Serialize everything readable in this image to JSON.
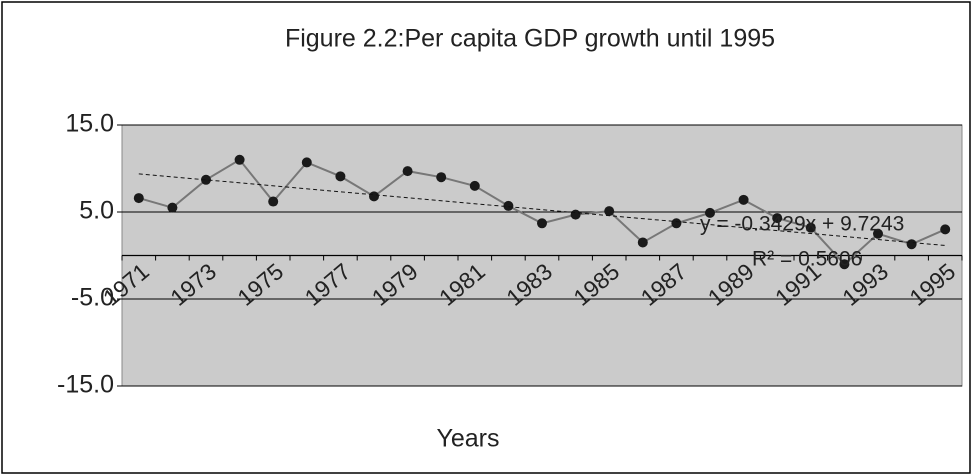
{
  "chart_data": {
    "type": "line",
    "title": "Figure 2.2:Per capita GDP growth until 1995",
    "x_label": "Years",
    "categories": [
      "1971",
      null,
      "1973",
      null,
      "1975",
      null,
      "1977",
      null,
      "1979",
      null,
      "1981",
      null,
      "1983",
      null,
      "1985",
      null,
      "1987",
      null,
      "1989",
      null,
      "1991",
      null,
      "1993",
      null,
      "1995"
    ],
    "series": [
      {
        "name": "Per capita GDP growth",
        "color": "#777777",
        "marker_color": "#1a1a1a",
        "values": [
          6.6,
          5.5,
          8.7,
          11.0,
          6.2,
          10.7,
          9.1,
          6.8,
          9.7,
          9.0,
          8.0,
          5.7,
          3.7,
          4.7,
          5.1,
          1.5,
          3.7,
          4.9,
          6.4,
          4.3,
          3.2,
          -1.0,
          2.5,
          1.3,
          3.0
        ]
      }
    ],
    "ylim": [
      -15,
      15
    ],
    "yticks": [
      {
        "value": 15,
        "label": "15.0"
      },
      {
        "value": 5,
        "label": "5.0"
      },
      {
        "value": -5,
        "label": "-5.0"
      },
      {
        "value": -15,
        "label": "-15.0"
      }
    ],
    "grid": true,
    "trendline": {
      "slope": -0.3429,
      "intercept": 9.7243,
      "equation": "y = -0.3429x + 9.7243",
      "r_squared": "R² = 0.5606"
    }
  }
}
